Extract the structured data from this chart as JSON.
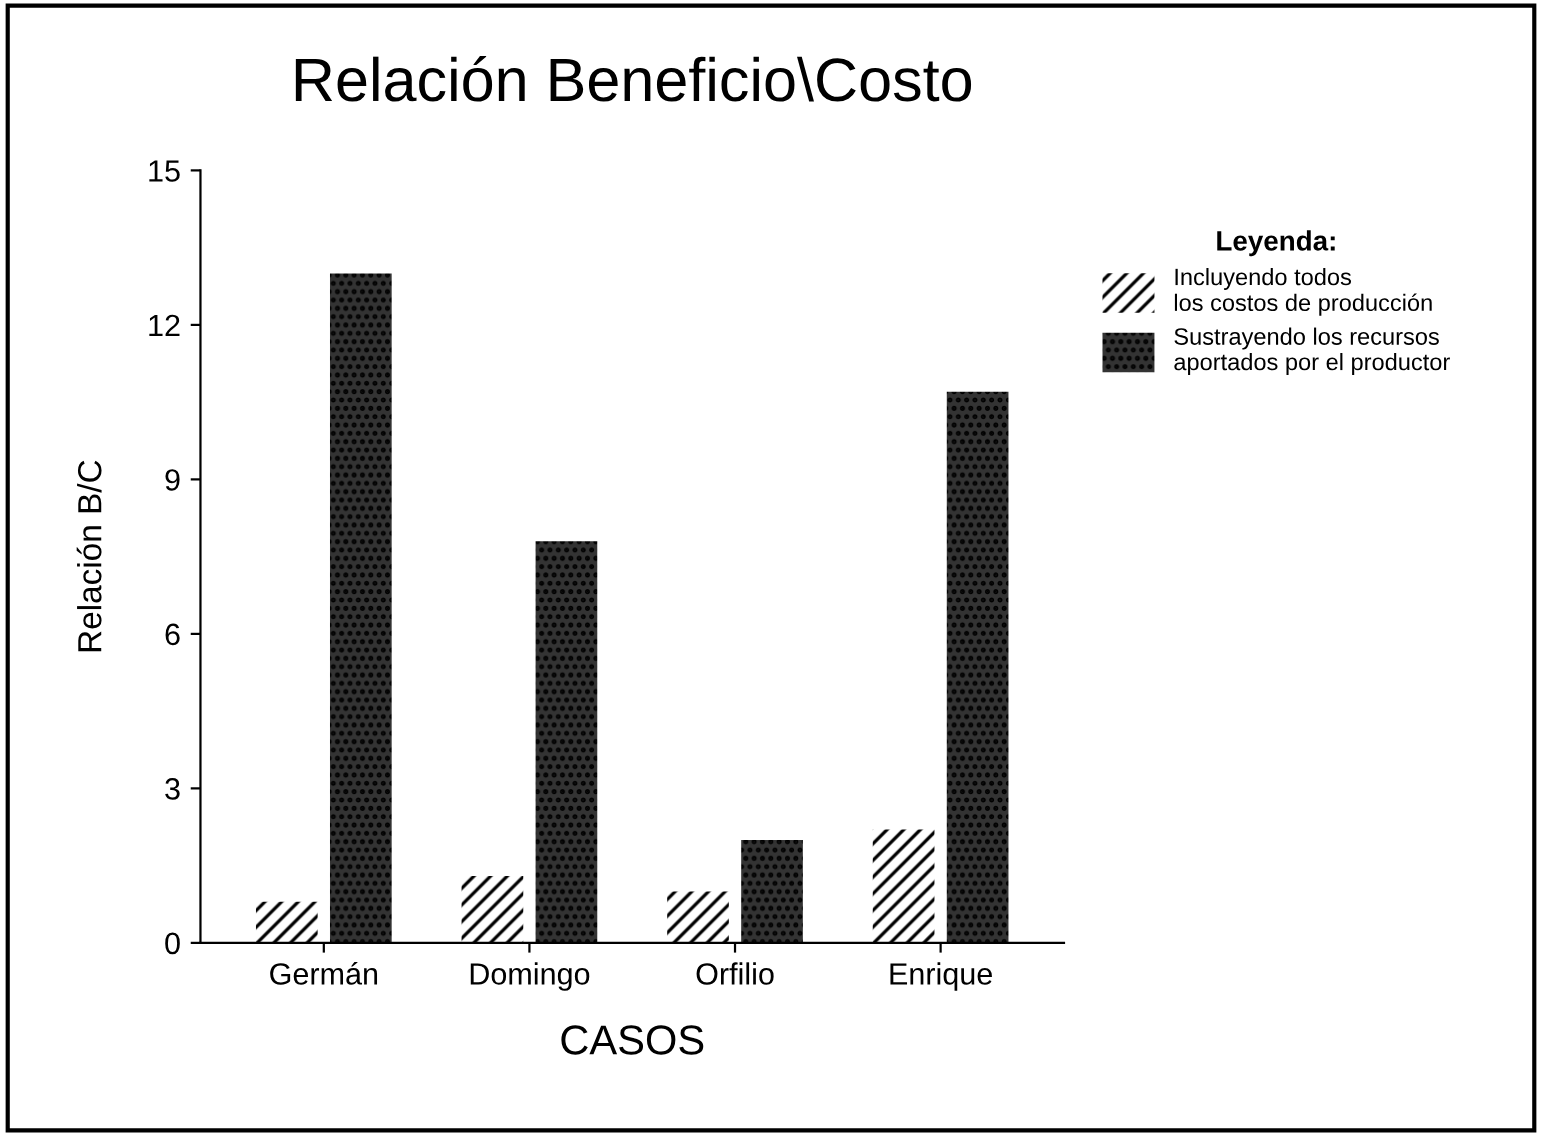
{
  "chart_data": {
    "type": "bar",
    "title": "Relación Beneficio\\Costo",
    "xlabel": "CASOS",
    "ylabel": "Relación B/C",
    "legend_title": "Leyenda:",
    "categories": [
      "Germán",
      "Domingo",
      "Orfilio",
      "Enrique"
    ],
    "series": [
      {
        "name": "Incluyendo todos\nlos costos de producción",
        "color": "#ffffff",
        "values": [
          0.8,
          1.3,
          1.0,
          2.2
        ]
      },
      {
        "name": "Sustrayendo los recursos\naportados por el productor",
        "color": "#333333",
        "values": [
          13.0,
          7.8,
          2.0,
          10.7
        ]
      }
    ],
    "ylim": [
      0,
      15
    ],
    "yticks": [
      0,
      3,
      6,
      9,
      12,
      15
    ],
    "grid": false,
    "legend": "right"
  }
}
